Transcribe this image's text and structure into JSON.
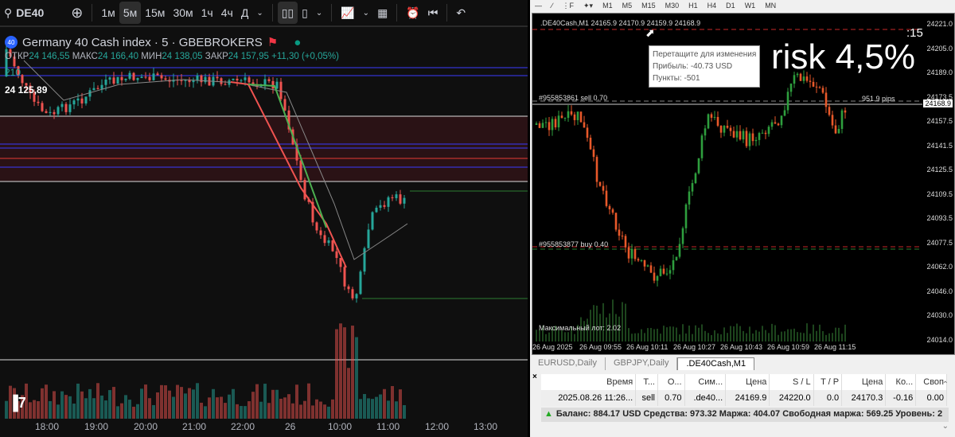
{
  "left": {
    "symbol": "DE40",
    "timeframes": [
      "1м",
      "5м",
      "15м",
      "30м",
      "1ч",
      "4ч",
      "Д"
    ],
    "active_timeframe": "5м",
    "title": "Germany 40 Cash index · 5 · GBEBROKERS",
    "badge": "40",
    "ohlc": {
      "o_label": "ОТКР",
      "o": "24 146,55",
      "h_label": "МАКС",
      "h": "24 166,40",
      "l_label": "МИН",
      "l": "24 138,05",
      "c_label": "ЗАКР",
      "c": "24 157,95",
      "change": "+11,30 (+0,05%)"
    },
    "indicator_value": "210",
    "price_label": "24 125,89",
    "time_axis": [
      "18:00",
      "19:00",
      "20:00",
      "21:00",
      "22:00",
      "26",
      "10:00",
      "11:00",
      "12:00",
      "13:00"
    ],
    "logo": "TV",
    "colors": {
      "up": "#26a69a",
      "down": "#ef5350"
    }
  },
  "right": {
    "toolbar_timeframes": [
      "M1",
      "M5",
      "M15",
      "M30",
      "H1",
      "H4",
      "D1",
      "W1",
      "MN"
    ],
    "chart_header": ".DE40Cash,M1  24165.9 24170.9 24159.9 24168.9",
    "countdown": ":15",
    "risk_text": "risk 4,5%",
    "tooltip": [
      "Перетащите для изменения",
      "Прибыль: -40.73 USD",
      "Пункты: -501"
    ],
    "sell_order": "#955853861 sell 0.70",
    "buy_order": "#955853877 buy 0.40",
    "pips": "951.9 pips",
    "max_lot": "Максимальный лот: 2.02",
    "price_axis": [
      "24221.0",
      "24205.0",
      "24189.0",
      "24173.5",
      "24157.5",
      "24141.5",
      "24125.5",
      "24109.5",
      "24093.5",
      "24077.5",
      "24062.0",
      "24046.0",
      "24030.0",
      "24014.0"
    ],
    "current_price": "24168.9",
    "time_axis": [
      "26 Aug 2025",
      "26 Aug 09:55",
      "26 Aug 10:11",
      "26 Aug 10:27",
      "26 Aug 10:43",
      "26 Aug 10:59",
      "26 Aug 11:15"
    ],
    "tabs": [
      "EURUSD,Daily",
      "GBPJPY,Daily",
      ".DE40Cash,M1"
    ],
    "table": {
      "headers": [
        "Время",
        "Т...",
        "О...",
        "Сим...",
        "Цена",
        "S / L",
        "T / P",
        "Цена",
        "Ко...",
        "Своп"
      ],
      "rows": [
        [
          "2025.08.26 11:26...",
          "sell",
          "0.70",
          ".de40...",
          "24169.9",
          "24220.0",
          "0.0",
          "24170.3",
          "-0.16",
          "0.00"
        ]
      ]
    },
    "balance": "Баланс: 884.17 USD  Средства: 973.32  Маржа: 404.07  Свободная маржа: 569.25  Уровень: 2"
  }
}
